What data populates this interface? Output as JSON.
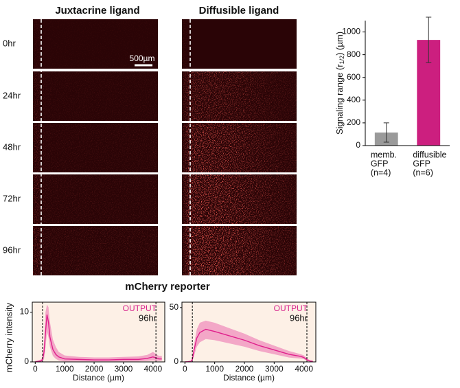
{
  "figure": {
    "columns": [
      "Juxtacrine ligand",
      "Diffusible ligand"
    ],
    "rows": [
      "0hr",
      "24hr",
      "48hr",
      "72hr",
      "96hr"
    ],
    "scale_bar": "500µm",
    "section_title": "mCherry reporter"
  },
  "chart_data": [
    {
      "type": "bar",
      "ylabel": [
        "Signaling range (r",
        "1/2",
        ") (µm)"
      ],
      "categories": [
        [
          "memb.",
          "GFP",
          "(n=4)"
        ],
        [
          "diffusible",
          "GFP",
          "(n=6)"
        ]
      ],
      "values": [
        115,
        930
      ],
      "errors": [
        85,
        200
      ],
      "colors": [
        "#9a9a9a",
        "#cc1f7f"
      ],
      "ylim": [
        0,
        1100
      ],
      "yticks": [
        0,
        200,
        400,
        600,
        800,
        1000
      ]
    },
    {
      "type": "line",
      "ylabel": "mCherry intensity",
      "xlabel": "Distance (µm)",
      "annotations": [
        "OUTPUT",
        "96hr"
      ],
      "x": [
        0,
        100,
        200,
        250,
        300,
        350,
        400,
        450,
        500,
        600,
        700,
        800,
        1000,
        1500,
        2000,
        2500,
        3000,
        3500,
        3800,
        4000,
        4100,
        4200,
        4300
      ],
      "series": [
        {
          "color": "#e0208c",
          "values": [
            0,
            0.1,
            0.2,
            0.5,
            2,
            6,
            9.5,
            8,
            5,
            2.5,
            1.5,
            1,
            0.6,
            0.5,
            0.4,
            0.4,
            0.5,
            0.5,
            0.7,
            1,
            0.8,
            0.6,
            0.6
          ],
          "lower": [
            0,
            0,
            0,
            0.1,
            0.6,
            3,
            6,
            5,
            3,
            1.2,
            0.6,
            0.3,
            0.1,
            0.1,
            0.1,
            0.1,
            0.1,
            0.1,
            0.2,
            0.3,
            0.2,
            0.2,
            0.2
          ],
          "upper": [
            0.2,
            0.3,
            0.5,
            1,
            4,
            10,
            11.5,
            11,
            8,
            4.5,
            3,
            2,
            1.3,
            1,
            0.9,
            0.9,
            1,
            1.1,
            1.4,
            2,
            1.6,
            1.2,
            1.2
          ]
        }
      ],
      "vlines": [
        250,
        4100
      ],
      "xlim": [
        -100,
        4400
      ],
      "xticks": [
        0,
        1000,
        2000,
        3000,
        4000
      ],
      "ylim": [
        0,
        12
      ],
      "yticks": [
        0,
        10
      ]
    },
    {
      "type": "line",
      "xlabel": "Distance (µm)",
      "annotations": [
        "OUTPUT",
        "96hr"
      ],
      "x": [
        0,
        100,
        200,
        250,
        300,
        400,
        500,
        700,
        1000,
        1500,
        2000,
        2500,
        3000,
        3500,
        3900,
        4000,
        4100,
        4200,
        4300
      ],
      "series": [
        {
          "color": "#e0208c",
          "values": [
            0,
            0.2,
            0.5,
            2,
            10,
            22,
            27,
            30,
            28,
            24,
            20,
            15,
            11,
            7,
            5,
            4,
            2,
            0.8,
            0.5
          ],
          "lower": [
            0,
            0,
            0.1,
            0.8,
            5,
            14,
            18,
            21,
            20,
            17,
            14,
            10,
            7,
            4,
            3,
            2.5,
            1,
            0.3,
            0.2
          ],
          "upper": [
            0.3,
            0.5,
            1,
            4,
            15,
            30,
            36,
            38,
            36,
            31,
            26,
            20,
            15,
            10,
            7,
            6,
            3.5,
            1.5,
            1
          ]
        }
      ],
      "vlines": [
        250,
        4100
      ],
      "xlim": [
        -100,
        4400
      ],
      "xticks": [
        0,
        1000,
        2000,
        3000,
        4000
      ],
      "ylim": [
        0,
        55
      ],
      "yticks": [
        0,
        50
      ]
    }
  ]
}
